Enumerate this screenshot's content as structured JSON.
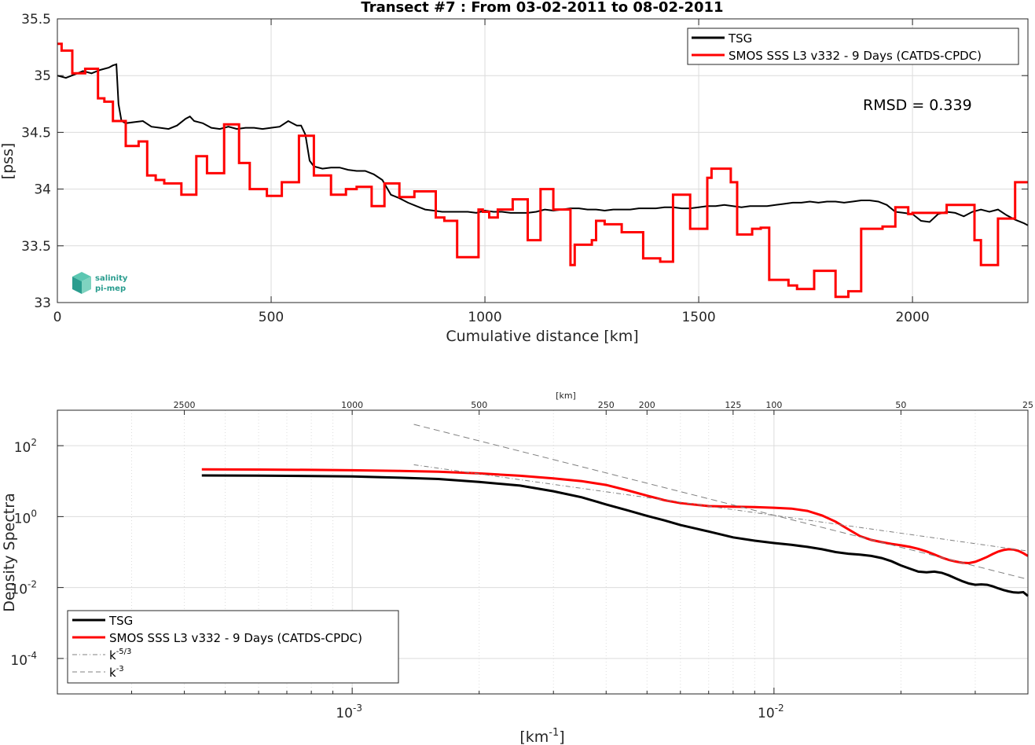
{
  "chart_data": [
    {
      "type": "line",
      "title": "Transect #7 : From 03-02-2011 to 08-02-2011",
      "xlabel": "Cumulative distance [km]",
      "ylabel": "[pss]",
      "xlim": [
        0,
        2270
      ],
      "ylim": [
        33,
        35.5
      ],
      "xticks": [
        "0",
        "500",
        "1000",
        "1500",
        "2000"
      ],
      "yticks": [
        "33",
        "33.5",
        "34",
        "34.5",
        "35",
        "35.5"
      ],
      "grid": true,
      "legend_position": "top-right",
      "annotation": "RMSD = 0.339",
      "logo": [
        "salinity",
        "pi-mep"
      ],
      "series": [
        {
          "name": "TSG",
          "color": "#000000",
          "x": [
            0,
            20,
            40,
            60,
            80,
            100,
            120,
            130,
            138,
            143,
            150,
            160,
            180,
            200,
            220,
            240,
            260,
            280,
            300,
            310,
            320,
            340,
            360,
            380,
            400,
            420,
            440,
            460,
            480,
            500,
            520,
            540,
            560,
            570,
            580,
            590,
            600,
            620,
            640,
            660,
            680,
            700,
            720,
            740,
            760,
            780,
            800,
            820,
            840,
            860,
            880,
            900,
            920,
            940,
            960,
            980,
            1000,
            1020,
            1040,
            1060,
            1080,
            1100,
            1120,
            1140,
            1160,
            1180,
            1200,
            1220,
            1240,
            1260,
            1280,
            1300,
            1320,
            1340,
            1360,
            1380,
            1400,
            1420,
            1440,
            1460,
            1480,
            1500,
            1520,
            1540,
            1560,
            1580,
            1600,
            1620,
            1640,
            1660,
            1680,
            1700,
            1720,
            1740,
            1760,
            1780,
            1800,
            1820,
            1840,
            1860,
            1880,
            1900,
            1920,
            1940,
            1960,
            1980,
            2000,
            2020,
            2040,
            2060,
            2080,
            2100,
            2120,
            2140,
            2160,
            2180,
            2200,
            2220,
            2240,
            2260,
            2270
          ],
          "y": [
            35.0,
            34.98,
            35.01,
            35.04,
            35.02,
            35.05,
            35.07,
            35.09,
            35.1,
            34.75,
            34.6,
            34.58,
            34.59,
            34.6,
            34.55,
            34.54,
            34.53,
            34.56,
            34.62,
            34.64,
            34.6,
            34.58,
            34.54,
            34.53,
            34.55,
            34.53,
            34.54,
            34.54,
            34.53,
            34.54,
            34.55,
            34.6,
            34.56,
            34.56,
            34.48,
            34.25,
            34.2,
            34.18,
            34.19,
            34.19,
            34.17,
            34.16,
            34.16,
            34.13,
            34.08,
            33.95,
            33.92,
            33.88,
            33.85,
            33.82,
            33.81,
            33.8,
            33.8,
            33.8,
            33.8,
            33.79,
            33.81,
            33.8,
            33.8,
            33.79,
            33.79,
            33.79,
            33.8,
            33.82,
            33.81,
            33.82,
            33.83,
            33.83,
            33.82,
            33.82,
            33.81,
            33.82,
            33.82,
            33.82,
            33.83,
            33.83,
            33.83,
            33.84,
            33.84,
            33.83,
            33.83,
            33.84,
            33.85,
            33.85,
            33.86,
            33.85,
            33.84,
            33.85,
            33.85,
            33.85,
            33.86,
            33.87,
            33.88,
            33.88,
            33.89,
            33.88,
            33.89,
            33.89,
            33.88,
            33.89,
            33.9,
            33.9,
            33.89,
            33.86,
            33.8,
            33.79,
            33.78,
            33.72,
            33.71,
            33.78,
            33.8,
            33.79,
            33.76,
            33.8,
            33.82,
            33.8,
            33.82,
            33.77,
            33.73,
            33.7,
            33.68
          ]
        },
        {
          "name": "SMOS SSS L3 v332 - 9 Days (CATDS-CPDC)",
          "color": "#ff0000",
          "step_x": [
            0,
            10,
            35,
            65,
            95,
            110,
            130,
            160,
            190,
            210,
            230,
            250,
            290,
            325,
            350,
            390,
            425,
            450,
            490,
            525,
            565,
            600,
            640,
            675,
            700,
            735,
            765,
            800,
            835,
            885,
            905,
            935,
            985,
            995,
            1010,
            1030,
            1065,
            1100,
            1130,
            1160,
            1200,
            1210,
            1250,
            1260,
            1280,
            1320,
            1370,
            1410,
            1440,
            1480,
            1520,
            1530,
            1575,
            1590,
            1625,
            1645,
            1665,
            1710,
            1730,
            1770,
            1820,
            1850,
            1880,
            1930,
            1960,
            1990,
            2000,
            2080,
            2145,
            2160,
            2200,
            2240,
            2270
          ],
          "step_y": [
            35.28,
            35.22,
            35.02,
            35.06,
            34.8,
            34.77,
            34.6,
            34.38,
            34.42,
            34.12,
            34.08,
            34.05,
            33.95,
            34.29,
            34.14,
            34.57,
            34.23,
            34.0,
            33.94,
            34.06,
            34.47,
            34.12,
            33.95,
            34.0,
            34.02,
            33.85,
            34.05,
            33.93,
            33.98,
            33.75,
            33.72,
            33.4,
            33.82,
            33.8,
            33.75,
            33.82,
            33.91,
            33.55,
            34.0,
            33.82,
            33.33,
            33.51,
            33.55,
            33.72,
            33.69,
            33.62,
            33.39,
            33.36,
            33.95,
            33.65,
            34.1,
            34.18,
            34.06,
            33.6,
            33.65,
            33.66,
            33.2,
            33.15,
            33.12,
            33.28,
            33.05,
            33.1,
            33.65,
            33.67,
            33.84,
            33.78,
            33.79,
            33.86,
            33.55,
            33.33,
            33.74,
            34.06,
            34.06
          ]
        }
      ]
    },
    {
      "type": "line",
      "xscale": "log",
      "yscale": "log",
      "xlabel": "[km^-1]",
      "ylabel": "Density Spectra",
      "top_axis_label": "[km]",
      "top_ticks_km": [
        2500,
        1000,
        500,
        250,
        200,
        125,
        100,
        50,
        25
      ],
      "xlim": [
        0.0002,
        0.04
      ],
      "ylim": [
        1e-05,
        1000
      ],
      "xticks": [
        "10^-3",
        "10^-2"
      ],
      "yticks": [
        "10^-4",
        "10^-2",
        "10^0",
        "10^2"
      ],
      "grid": true,
      "legend_position": "bottom-left",
      "series": [
        {
          "name": "TSG",
          "color": "#000000",
          "x": [
            0.00044,
            0.0006,
            0.0008,
            0.001,
            0.0013,
            0.0016,
            0.002,
            0.0025,
            0.003,
            0.0035,
            0.004,
            0.0045,
            0.005,
            0.0055,
            0.006,
            0.007,
            0.008,
            0.009,
            0.01,
            0.011,
            0.012,
            0.013,
            0.014,
            0.015,
            0.016,
            0.017,
            0.018,
            0.019,
            0.02,
            0.021,
            0.022,
            0.023,
            0.024,
            0.025,
            0.026,
            0.027,
            0.028,
            0.029,
            0.03,
            0.031,
            0.032,
            0.033,
            0.034,
            0.035,
            0.036,
            0.037,
            0.038,
            0.039,
            0.04
          ],
          "y": [
            14.5,
            14.3,
            14.0,
            13.6,
            12.5,
            11.5,
            9.5,
            7.5,
            5.2,
            3.5,
            2.2,
            1.5,
            1.05,
            0.78,
            0.58,
            0.38,
            0.26,
            0.21,
            0.18,
            0.16,
            0.14,
            0.12,
            0.1,
            0.09,
            0.085,
            0.078,
            0.068,
            0.055,
            0.042,
            0.034,
            0.028,
            0.027,
            0.028,
            0.026,
            0.022,
            0.018,
            0.015,
            0.013,
            0.012,
            0.0123,
            0.012,
            0.0108,
            0.0095,
            0.0085,
            0.0078,
            0.0073,
            0.0072,
            0.0074,
            0.0058
          ]
        },
        {
          "name": "SMOS SSS L3 v332 - 9 Days (CATDS-CPDC)",
          "color": "#ff0000",
          "x": [
            0.00044,
            0.0006,
            0.0008,
            0.001,
            0.0013,
            0.0016,
            0.002,
            0.0025,
            0.003,
            0.0035,
            0.004,
            0.0045,
            0.005,
            0.0055,
            0.006,
            0.007,
            0.008,
            0.009,
            0.01,
            0.011,
            0.012,
            0.013,
            0.014,
            0.015,
            0.016,
            0.017,
            0.018,
            0.019,
            0.02,
            0.021,
            0.022,
            0.023,
            0.024,
            0.025,
            0.026,
            0.027,
            0.028,
            0.029,
            0.03,
            0.031,
            0.032,
            0.033,
            0.034,
            0.035,
            0.036,
            0.037,
            0.038,
            0.039,
            0.04
          ],
          "y": [
            21.5,
            21.2,
            20.8,
            20.3,
            19.5,
            18.5,
            16.5,
            14.2,
            12.0,
            10.0,
            7.8,
            5.5,
            3.9,
            2.9,
            2.4,
            1.98,
            1.9,
            1.85,
            1.78,
            1.68,
            1.45,
            1.08,
            0.72,
            0.44,
            0.28,
            0.22,
            0.19,
            0.17,
            0.155,
            0.14,
            0.123,
            0.104,
            0.086,
            0.07,
            0.06,
            0.054,
            0.05,
            0.049,
            0.053,
            0.062,
            0.073,
            0.088,
            0.103,
            0.114,
            0.12,
            0.118,
            0.108,
            0.093,
            0.078
          ]
        },
        {
          "name": "k^-5/3",
          "color": "#808080",
          "x": [
            0.0014,
            0.04
          ],
          "y": [
            29.0,
            0.107
          ]
        },
        {
          "name": "k^-3",
          "color": "#808080",
          "x": [
            0.0014,
            0.04
          ],
          "y": [
            400,
            0.017
          ]
        }
      ]
    }
  ]
}
